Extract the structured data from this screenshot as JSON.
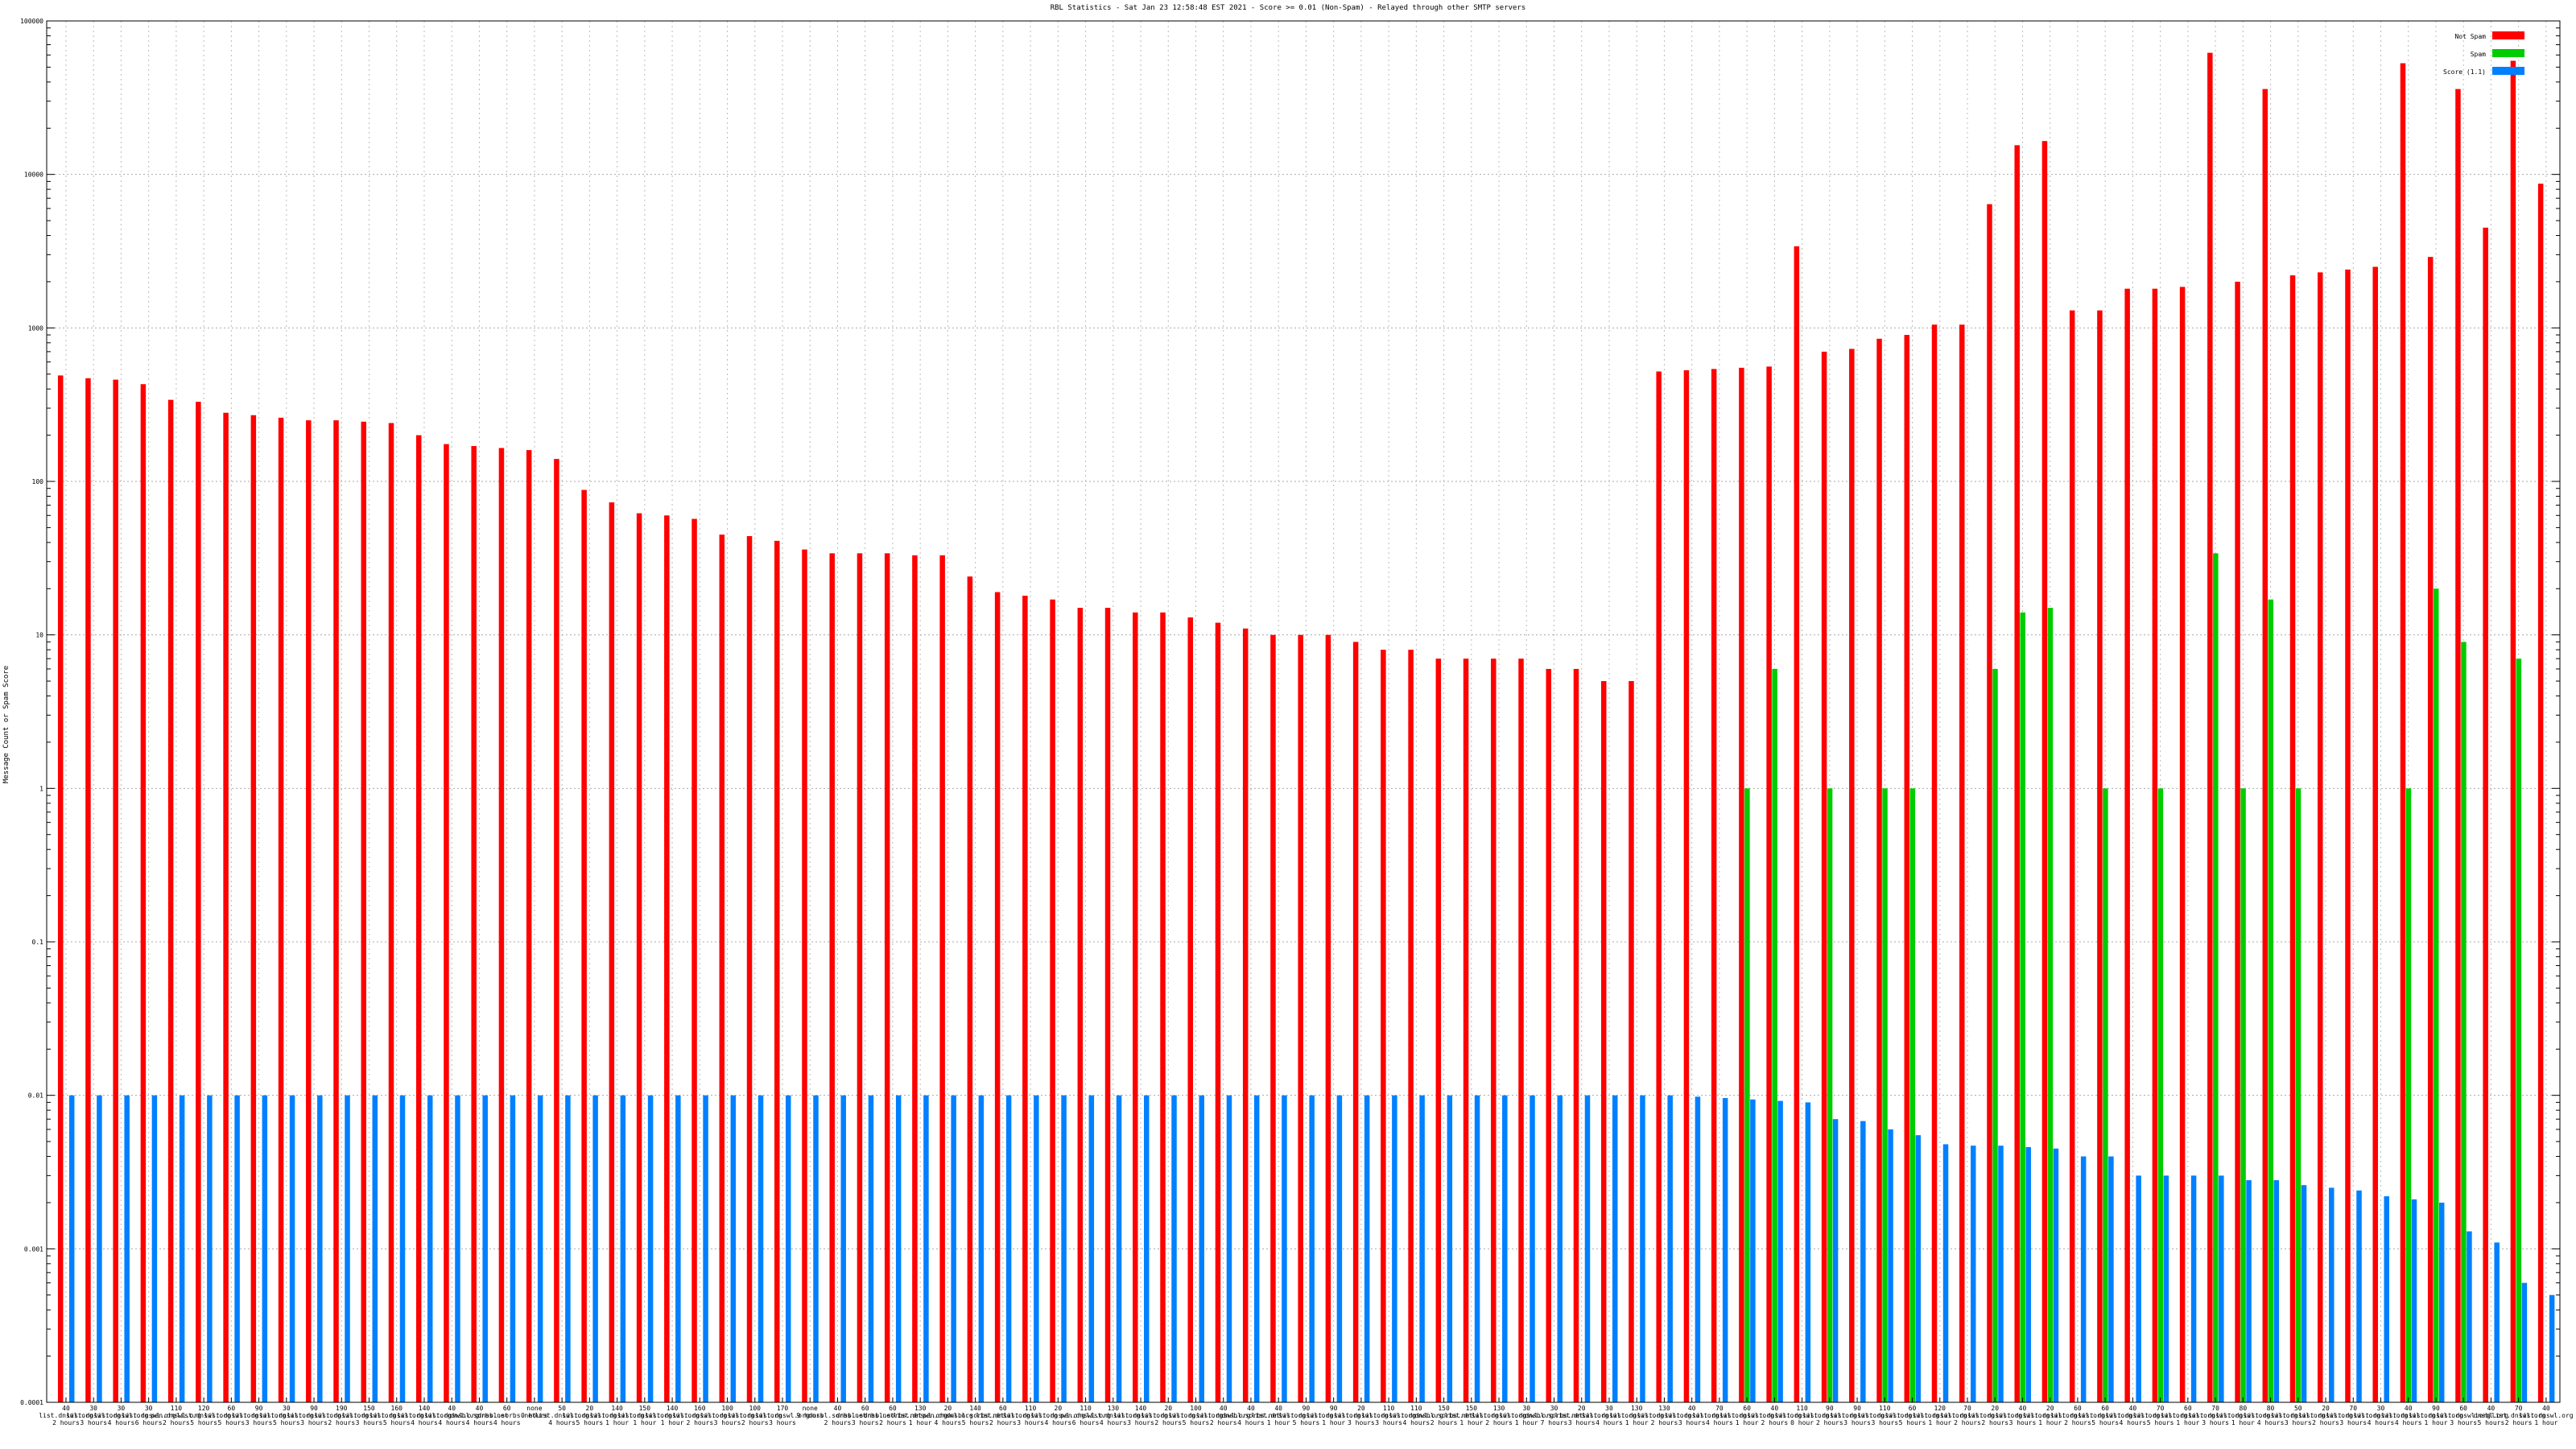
{
  "chart_data": {
    "type": "bar",
    "title": "RBL Statistics - Sat Jan 23 12:58:48 EST 2021 - Score >= 0.01 (Non-Spam) - Relayed through other SMTP servers",
    "ylabel": "Message Count or Spam Score",
    "xlabel": "",
    "scale": "log",
    "ylim": [
      0.0001,
      100000
    ],
    "yticks": [
      {
        "v": 0.0001,
        "label": "0.0001"
      },
      {
        "v": 0.001,
        "label": "0.001"
      },
      {
        "v": 0.01,
        "label": "0.01"
      },
      {
        "v": 0.1,
        "label": "0.1"
      },
      {
        "v": 1,
        "label": "1"
      },
      {
        "v": 10,
        "label": "10"
      },
      {
        "v": 100,
        "label": "100"
      },
      {
        "v": 1000,
        "label": "1000"
      },
      {
        "v": 10000,
        "label": "10000"
      },
      {
        "v": 100000,
        "label": "100000"
      }
    ],
    "grid": true,
    "legend_position": "top-right",
    "colors": {
      "not_spam": "#ff0000",
      "spam": "#00cc00",
      "score": "#0080ff"
    },
    "series": [
      {
        "name": "Not Spam",
        "values": [
          490,
          470,
          460,
          430,
          340,
          330,
          280,
          270,
          260,
          250,
          250,
          245,
          240,
          200,
          175,
          170,
          165,
          160,
          140,
          88,
          73,
          62,
          60,
          57,
          45,
          44,
          41,
          36,
          34,
          34,
          34,
          33,
          33,
          24,
          19,
          18,
          17,
          15,
          15,
          14,
          14,
          13,
          12,
          11,
          10,
          10,
          10,
          9,
          8,
          8,
          7,
          7,
          7,
          7,
          6,
          6,
          5,
          5,
          520,
          530,
          540,
          550,
          560,
          3400,
          700,
          730,
          850,
          900,
          1050,
          1050,
          6400,
          15500,
          16500,
          1300,
          1300,
          1800,
          1800,
          1850,
          62000,
          2000,
          36000,
          2200,
          2300,
          2400,
          2500,
          53000,
          2900,
          36000,
          4500,
          55000,
          8700
        ]
      },
      {
        "name": "Spam",
        "values": [
          null,
          null,
          null,
          null,
          null,
          null,
          null,
          null,
          null,
          null,
          null,
          null,
          null,
          null,
          null,
          null,
          null,
          null,
          null,
          null,
          null,
          null,
          null,
          null,
          null,
          null,
          null,
          null,
          null,
          null,
          null,
          null,
          null,
          null,
          null,
          null,
          null,
          null,
          null,
          null,
          null,
          null,
          null,
          null,
          null,
          null,
          null,
          null,
          null,
          null,
          null,
          null,
          null,
          null,
          null,
          null,
          null,
          null,
          null,
          null,
          null,
          1,
          6,
          null,
          1,
          null,
          1,
          1,
          null,
          null,
          6,
          14,
          15,
          null,
          1,
          null,
          1,
          null,
          34,
          1,
          17,
          1,
          null,
          null,
          null,
          1,
          20,
          9,
          null,
          7,
          null
        ]
      },
      {
        "name": "Score (1.1)",
        "values": [
          0.01,
          0.01,
          0.01,
          0.01,
          0.01,
          0.01,
          0.01,
          0.01,
          0.01,
          0.01,
          0.01,
          0.01,
          0.01,
          0.01,
          0.01,
          0.01,
          0.01,
          0.01,
          0.01,
          0.01,
          0.01,
          0.01,
          0.01,
          0.01,
          0.01,
          0.01,
          0.01,
          0.01,
          0.01,
          0.01,
          0.01,
          0.01,
          0.01,
          0.01,
          0.01,
          0.01,
          0.01,
          0.01,
          0.01,
          0.01,
          0.01,
          0.01,
          0.01,
          0.01,
          0.01,
          0.01,
          0.01,
          0.01,
          0.01,
          0.01,
          0.01,
          0.01,
          0.01,
          0.01,
          0.01,
          0.01,
          0.01,
          0.01,
          0.01,
          0.0098,
          0.0096,
          0.0094,
          0.0092,
          0.009,
          0.007,
          0.0068,
          0.006,
          0.0055,
          0.0048,
          0.0047,
          0.0047,
          0.0046,
          0.0045,
          0.004,
          0.004,
          0.003,
          0.003,
          0.003,
          0.003,
          0.0028,
          0.0028,
          0.0026,
          0.0025,
          0.0024,
          0.0022,
          0.0021,
          0.002,
          0.0013,
          0.0011,
          0.0006,
          0.0005
        ]
      }
    ],
    "categories": [
      "40|list.dnswl.org|2 hours",
      "30|list.dnswl.org|3 hours",
      "30|list.dnswl.org|4 hours",
      "30|list.dnswl.org|6 hours",
      "110|pen.dnswl.org|2 hours",
      "120|list.dnswl.org|5 hours",
      "60|list.dnswl.org|5 hours",
      "90|list.dnswl.org|3 hours",
      "30|list.dnswl.org|5 hours",
      "90|list.dnswl.org|3 hours",
      "190|list.dnswl.org|2 hours",
      "150|list.dnswl.org|3 hours",
      "160|list.dnswl.org|5 hours",
      "140|list.dnswl.org|4 hours",
      "40|list.dnswl.org|4 hours",
      "40|dnsbl.sorbs.net|4 hours",
      "60|dnsbl.sorbs.net|4 hours",
      "none|0 hours",
      "50|list.dnswl.org|4 hours",
      "20|list.dnswl.org|5 hours",
      "140|list.dnswl.org|1 hour",
      "150|list.dnswl.org|1 hour",
      "140|list.dnswl.org|1 hour",
      "160|list.dnswl.org|2 hours",
      "100|list.dnswl.org|3 hours",
      "100|list.dnswl.org|2 hours",
      "170|list.dnswl.org|3 hours",
      "none|9 hours",
      "40|dnsbl.sorbs.net|2 hours",
      "60|dnsbl.sorbs.net|3 hours",
      "60|dnsbl.sorbs.net|2 hours",
      "130|list.dnswl.org|1 hour",
      "20|pen.dnswl.org|4 hours",
      "140|dnsbl.sorbs.net|5 hours",
      "60|list.dnswl.org|2 hours",
      "110|list.dnswl.org|3 hours",
      "20|list.dnswl.org|4 hours",
      "110|pen.dnswl.org|6 hours",
      "130|list.dnswl.org|4 hours",
      "140|list.dnswl.org|3 hours",
      "20|list.dnswl.org|2 hours",
      "100|list.dnswl.org|5 hours",
      "40|list.dnswl.org|2 hours",
      "40|dnsbl.sorbs.net|4 hours",
      "40|list.dnswl.org|1 hour",
      "90|list.dnswl.org|5 hours",
      "90|list.dnswl.org|1 hour",
      "20|list.dnswl.org|3 hours",
      "110|list.dnswl.org|3 hours",
      "110|list.dnswl.org|4 hours",
      "150|dnsbl.sorbs.net|2 hours",
      "150|list.dnswl.org|1 hour",
      "130|list.dnswl.org|2 hours",
      "30|list.dnswl.org|1 hour",
      "30|dnsbl.sorbs.net|7 hours",
      "20|list.dnswl.org|3 hours",
      "30|list.dnswl.org|4 hours",
      "130|list.dnswl.org|1 hour",
      "130|list.dnswl.org|2 hours",
      "40|list.dnswl.org|3 hours",
      "70|list.dnswl.org|4 hours",
      "60|list.dnswl.org|1 hour",
      "40|list.dnswl.org|2 hours",
      "110|list.dnswl.org|0 hour",
      "90|list.dnswl.org|2 hours",
      "90|list.dnswl.org|3 hours",
      "110|list.dnswl.org|3 hours",
      "60|list.dnswl.org|5 hours",
      "120|list.dnswl.org|1 hour",
      "70|list.dnswl.org|2 hours",
      "20|list.dnswl.org|2 hours",
      "40|list.dnswl.org|3 hours",
      "20|list.dnswl.org|1 hour",
      "60|list.dnswl.org|2 hours",
      "60|list.dnswl.org|5 hours",
      "40|list.dnswl.org|4 hours",
      "70|list.dnswl.org|5 hours",
      "60|list.dnswl.org|1 hour",
      "70|list.dnswl.org|3 hours",
      "80|list.dnswl.org|1 hour",
      "80|list.dnswl.org|4 hours",
      "50|list.dnswl.org|3 hours",
      "20|list.dnswl.org|2 hours",
      "70|list.dnswl.org|3 hours",
      "30|list.dnswl.org|4 hours",
      "40|list.dnswl.org|4 hours",
      "90|list.dnswl.org|1 hour",
      "60|list.dnswl.org|3 hours",
      "40|dnsbl.org|5 hours",
      "70|list.dnswl.org|2 hours",
      "40|list.dnswl.org|1 hour"
    ]
  },
  "legend": [
    {
      "label": "Not Spam",
      "color": "#ff0000"
    },
    {
      "label": "Spam",
      "color": "#00cc00"
    },
    {
      "label": "Score (1.1)",
      "color": "#0080ff"
    }
  ]
}
